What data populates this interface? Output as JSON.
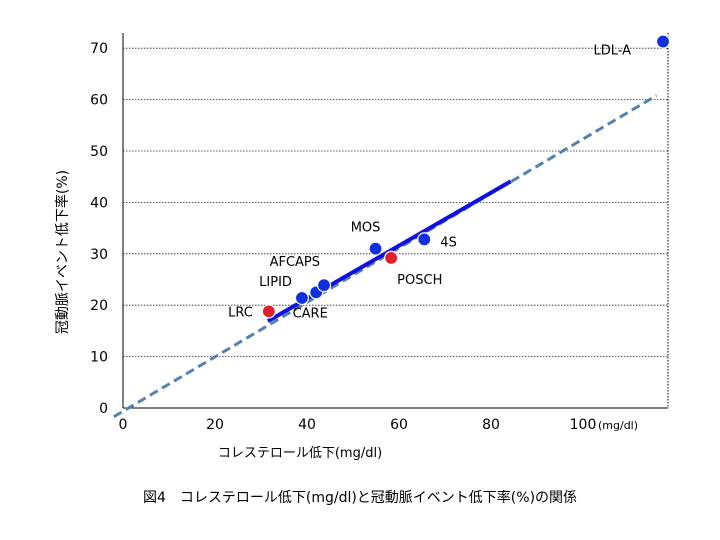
{
  "chart_data": {
    "type": "scatter",
    "xlabel": "コレステロール低下(mg/dl)",
    "ylabel": "冠動脈イベント低下率(%)",
    "xunit": "(mg/dl)",
    "xlim": [
      0,
      117
    ],
    "ylim": [
      0,
      74
    ],
    "xticks": [
      0,
      20,
      40,
      60,
      80,
      100
    ],
    "yticks": [
      0,
      10,
      20,
      30,
      40,
      50,
      60,
      70
    ],
    "grid": "horizontal-dotted",
    "points": [
      {
        "label": "LRC",
        "x": 31.7,
        "y": 18.8,
        "color": "#e0202a"
      },
      {
        "label": "LIPID",
        "x": 38.9,
        "y": 21.4,
        "color": "#1030e0"
      },
      {
        "label": "CARE",
        "x": 42.0,
        "y": 22.5,
        "color": "#1030e0"
      },
      {
        "label": "AFCAPS",
        "x": 43.7,
        "y": 23.9,
        "color": "#1030e0"
      },
      {
        "label": "MOS",
        "x": 54.9,
        "y": 31.0,
        "color": "#1030e0"
      },
      {
        "label": "POSCH",
        "x": 58.3,
        "y": 29.2,
        "color": "#e0202a"
      },
      {
        "label": "4S",
        "x": 65.5,
        "y": 32.8,
        "color": "#1030e0"
      },
      {
        "label": "LDL-A",
        "x": 117.4,
        "y": 71.3,
        "color": "#1030e0"
      }
    ],
    "regression_line": {
      "x": [
        31.5,
        84.3
      ],
      "y": [
        16.9,
        44.1
      ],
      "color": "#1010e0"
    },
    "trend_line": {
      "x": [
        -2,
        116
      ],
      "y": [
        -1.7,
        60.8
      ],
      "color": "#5580b0",
      "dashed": true
    }
  },
  "caption": "図4　コレステロール低下(mg/dl)と冠動脈イベント低下率(%)の関係"
}
